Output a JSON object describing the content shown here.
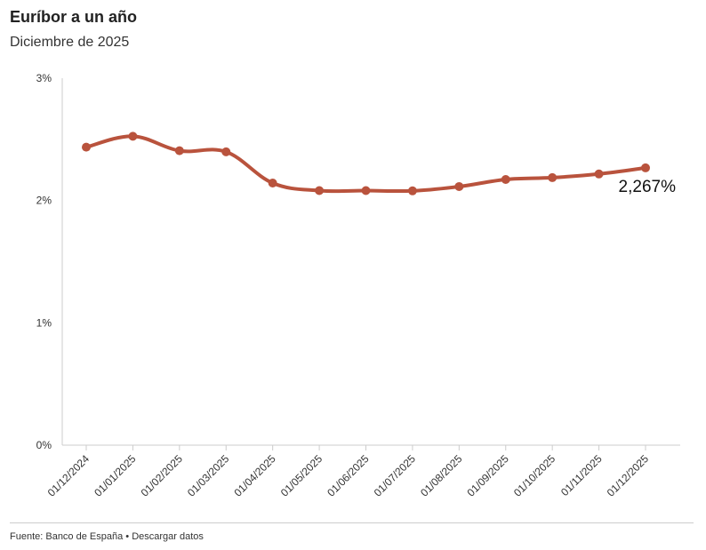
{
  "header": {
    "title": "Euríbor a un año",
    "subtitle": "Diciembre de 2025"
  },
  "footer": {
    "source": "Fuente: Banco de España",
    "separator": "•",
    "download_link": "Descargar datos"
  },
  "colors": {
    "series": "#b9533d",
    "axis": "#cccccc",
    "text": "#333333"
  },
  "chart_data": {
    "type": "line",
    "title": "Euríbor a un año",
    "subtitle": "Diciembre de 2025",
    "categories": [
      "01/12/2024",
      "01/01/2025",
      "01/02/2025",
      "01/03/2025",
      "01/04/2025",
      "01/05/2025",
      "01/06/2025",
      "01/07/2025",
      "01/08/2025",
      "01/09/2025",
      "01/10/2025",
      "01/11/2025",
      "01/12/2025"
    ],
    "series": [
      {
        "values": [
          2.436,
          2.525,
          2.407,
          2.398,
          2.143,
          2.081,
          2.081,
          2.079,
          2.114,
          2.172,
          2.187,
          2.217,
          2.267
        ]
      }
    ],
    "last_value_label": "2,267%",
    "y_ticks": [
      "0%",
      "1%",
      "2%",
      "3%"
    ],
    "ylim": [
      0,
      3
    ],
    "grid": false,
    "xlabel": "",
    "ylabel": ""
  }
}
